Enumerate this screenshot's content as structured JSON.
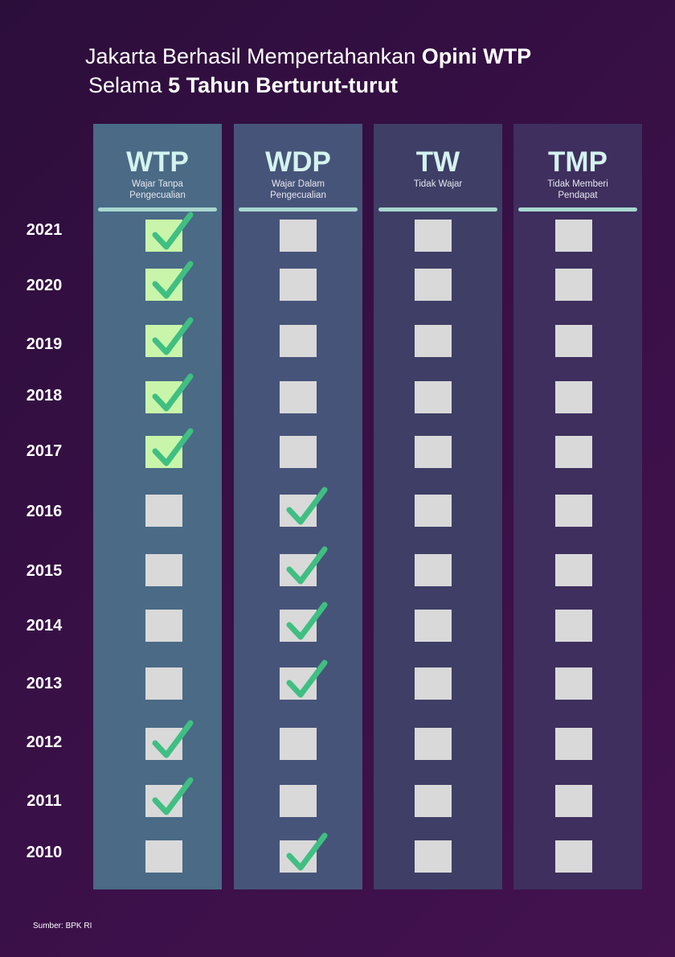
{
  "title": {
    "line1_pre": "Jakarta Berhasil Mempertahankan ",
    "line1_bold": "Opini WTP",
    "line2_pre": "Selama ",
    "line2_bold": "5 Tahun Berturut-turut"
  },
  "source": "Sumber: BPK RI",
  "colors": {
    "background": "#2c0e3b",
    "check": "#3fbf82",
    "box": "#d9d9d9",
    "wtp_highlight": "#c9f5aa"
  },
  "chart_data": {
    "type": "table",
    "columns": [
      {
        "abbr": "WTP",
        "full": "Wajar Tanpa Pengecualian",
        "color": "#4a6a86"
      },
      {
        "abbr": "WDP",
        "full": "Wajar Dalam Pengecualian",
        "color": "#475479"
      },
      {
        "abbr": "TW",
        "full": "Tidak Wajar",
        "color": "#3f3e66"
      },
      {
        "abbr": "TMP",
        "full": "Tidak Memberi Pendapat",
        "color": "#3e2f5e"
      }
    ],
    "rows": [
      {
        "year": "2021",
        "opinion": "WTP",
        "highlight": true
      },
      {
        "year": "2020",
        "opinion": "WTP",
        "highlight": true
      },
      {
        "year": "2019",
        "opinion": "WTP",
        "highlight": true
      },
      {
        "year": "2018",
        "opinion": "WTP",
        "highlight": true
      },
      {
        "year": "2017",
        "opinion": "WTP",
        "highlight": true
      },
      {
        "year": "2016",
        "opinion": "WDP",
        "highlight": false
      },
      {
        "year": "2015",
        "opinion": "WDP",
        "highlight": false
      },
      {
        "year": "2014",
        "opinion": "WDP",
        "highlight": false
      },
      {
        "year": "2013",
        "opinion": "WDP",
        "highlight": false
      },
      {
        "year": "2012",
        "opinion": "WTP",
        "highlight": false
      },
      {
        "year": "2011",
        "opinion": "WTP",
        "highlight": false
      },
      {
        "year": "2010",
        "opinion": "WDP",
        "highlight": false
      }
    ]
  }
}
